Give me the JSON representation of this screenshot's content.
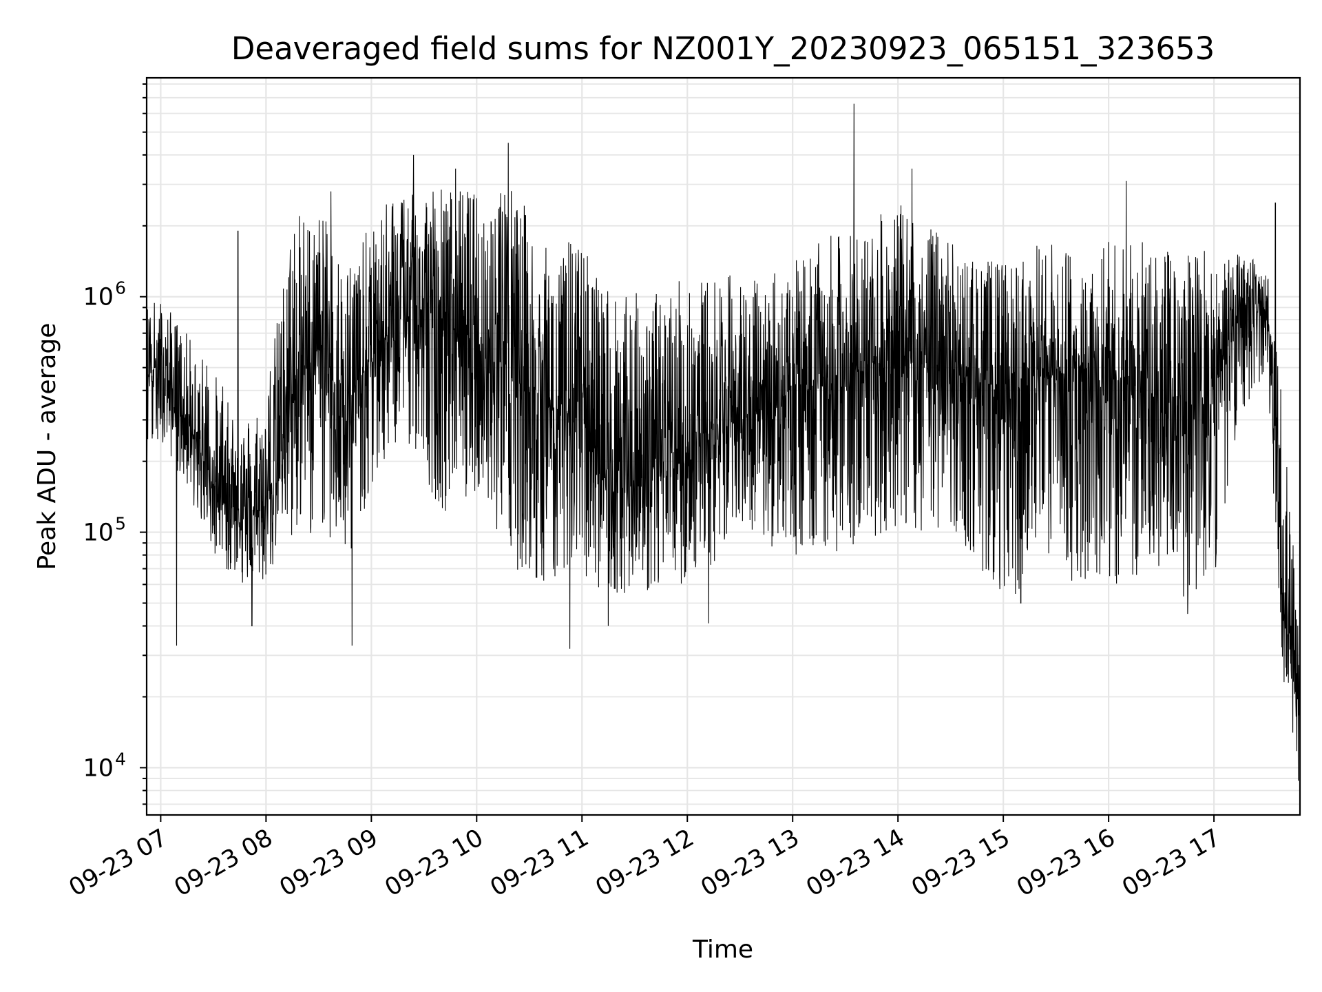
{
  "chart_data": {
    "type": "line",
    "title": "Deaveraged field sums for NZ001Y_20230923_065151_323653",
    "xlabel": "Time",
    "ylabel": "Peak ADU - average",
    "yscale": "log",
    "ylim": [
      6300,
      8500000
    ],
    "xlim": [
      "09-23 06:52",
      "09-23 17:49"
    ],
    "grid": true,
    "line_color": "#000000",
    "grid_color": "#e6e6e6",
    "x_ticks": [
      "09-23 07",
      "09-23 08",
      "09-23 09",
      "09-23 10",
      "09-23 11",
      "09-23 12",
      "09-23 13",
      "09-23 14",
      "09-23 15",
      "09-23 16",
      "09-23 17"
    ],
    "y_ticks": [
      {
        "base": "10",
        "exp": "4",
        "value": 10000
      },
      {
        "base": "10",
        "exp": "5",
        "value": 100000
      },
      {
        "base": "10",
        "exp": "6",
        "value": 1000000
      }
    ],
    "envelope": [
      {
        "t": "06:52",
        "low": 190000,
        "high": 1000000,
        "typical": 500000
      },
      {
        "t": "07:00",
        "low": 250000,
        "high": 1000000,
        "typical": 500000
      },
      {
        "t": "07:15",
        "low": 150000,
        "high": 700000,
        "typical": 300000
      },
      {
        "t": "07:30",
        "low": 80000,
        "high": 500000,
        "typical": 160000
      },
      {
        "t": "07:45",
        "low": 60000,
        "high": 300000,
        "typical": 120000
      },
      {
        "t": "08:00",
        "low": 60000,
        "high": 400000,
        "typical": 130000
      },
      {
        "t": "08:15",
        "low": 90000,
        "high": 2200000,
        "typical": 400000
      },
      {
        "t": "08:30",
        "low": 100000,
        "high": 2400000,
        "typical": 600000
      },
      {
        "t": "08:45",
        "low": 70000,
        "high": 1500000,
        "typical": 350000
      },
      {
        "t": "09:00",
        "low": 150000,
        "high": 2000000,
        "typical": 550000
      },
      {
        "t": "09:20",
        "low": 250000,
        "high": 3500000,
        "typical": 900000
      },
      {
        "t": "09:40",
        "low": 120000,
        "high": 3100000,
        "typical": 800000
      },
      {
        "t": "10:00",
        "low": 150000,
        "high": 2800000,
        "typical": 600000
      },
      {
        "t": "10:20",
        "low": 70000,
        "high": 3200000,
        "typical": 500000
      },
      {
        "t": "10:40",
        "low": 60000,
        "high": 1600000,
        "typical": 350000
      },
      {
        "t": "11:00",
        "low": 60000,
        "high": 1800000,
        "typical": 300000
      },
      {
        "t": "11:20",
        "low": 55000,
        "high": 1000000,
        "typical": 150000
      },
      {
        "t": "11:40",
        "low": 55000,
        "high": 1100000,
        "typical": 180000
      },
      {
        "t": "12:00",
        "low": 60000,
        "high": 1200000,
        "typical": 200000
      },
      {
        "t": "12:20",
        "low": 80000,
        "high": 1300000,
        "typical": 280000
      },
      {
        "t": "12:40",
        "low": 90000,
        "high": 1200000,
        "typical": 320000
      },
      {
        "t": "13:00",
        "low": 80000,
        "high": 1400000,
        "typical": 400000
      },
      {
        "t": "13:20",
        "low": 80000,
        "high": 1800000,
        "typical": 450000
      },
      {
        "t": "13:40",
        "low": 90000,
        "high": 2000000,
        "typical": 500000
      },
      {
        "t": "14:00",
        "low": 100000,
        "high": 2500000,
        "typical": 550000
      },
      {
        "t": "14:20",
        "low": 100000,
        "high": 2000000,
        "typical": 500000
      },
      {
        "t": "14:40",
        "low": 80000,
        "high": 1500000,
        "typical": 450000
      },
      {
        "t": "15:00",
        "low": 50000,
        "high": 1400000,
        "typical": 400000
      },
      {
        "t": "15:20",
        "low": 60000,
        "high": 1700000,
        "typical": 450000
      },
      {
        "t": "15:40",
        "low": 60000,
        "high": 1700000,
        "typical": 450000
      },
      {
        "t": "16:00",
        "low": 60000,
        "high": 1800000,
        "typical": 450000
      },
      {
        "t": "16:20",
        "low": 55000,
        "high": 1700000,
        "typical": 400000
      },
      {
        "t": "16:40",
        "low": 50000,
        "high": 1600000,
        "typical": 350000
      },
      {
        "t": "17:00",
        "low": 60000,
        "high": 1600000,
        "typical": 400000
      },
      {
        "t": "17:15",
        "low": 300000,
        "high": 1500000,
        "typical": 900000
      },
      {
        "t": "17:30",
        "low": 500000,
        "high": 1400000,
        "typical": 950000
      },
      {
        "t": "17:40",
        "low": 20000,
        "high": 300000,
        "typical": 45000
      },
      {
        "t": "17:49",
        "low": 9000,
        "high": 35000,
        "typical": 20000
      }
    ],
    "spikes": [
      {
        "t": "07:09",
        "value": 33000
      },
      {
        "t": "07:44",
        "value": 1900000
      },
      {
        "t": "07:52",
        "value": 40000
      },
      {
        "t": "08:19",
        "value": 2200000
      },
      {
        "t": "08:37",
        "value": 2800000
      },
      {
        "t": "08:49",
        "value": 33000
      },
      {
        "t": "09:24",
        "value": 4000000
      },
      {
        "t": "09:48",
        "value": 3500000
      },
      {
        "t": "10:18",
        "value": 4500000
      },
      {
        "t": "10:53",
        "value": 32000
      },
      {
        "t": "11:15",
        "value": 40000
      },
      {
        "t": "12:12",
        "value": 41000
      },
      {
        "t": "13:35",
        "value": 6600000
      },
      {
        "t": "14:08",
        "value": 3500000
      },
      {
        "t": "15:10",
        "value": 50000
      },
      {
        "t": "16:10",
        "value": 3100000
      },
      {
        "t": "16:45",
        "value": 45000
      },
      {
        "t": "17:35",
        "value": 2500000
      },
      {
        "t": "17:48",
        "value": 8800
      }
    ]
  }
}
